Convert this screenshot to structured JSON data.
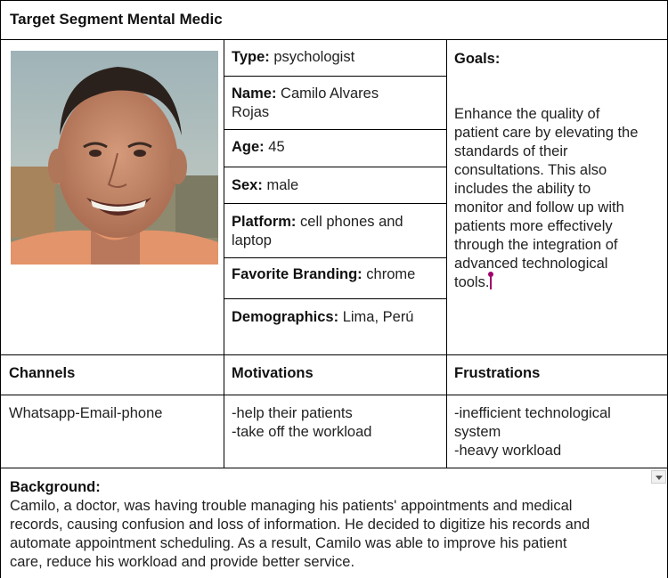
{
  "title": "Target Segment Mental Medic",
  "profile": {
    "type_label": "Type:",
    "type_value": "psychologist",
    "name_label": "Name:",
    "name_value_1": "Camilo Alvares",
    "name_value_2": "Rojas",
    "age_label": "Age:",
    "age_value": "45",
    "sex_label": "Sex:",
    "sex_value": "male",
    "platform_label": "Platform:",
    "platform_value_1": "cell phones and",
    "platform_value_2": "laptop",
    "branding_label": "Favorite Branding:",
    "branding_value": "chrome",
    "demographics_label": "Demographics:",
    "demographics_value": "Lima, Perú"
  },
  "goals": {
    "label": "Goals:",
    "lines": [
      "Enhance the quality of",
      "patient care by elevating the",
      "standards of their",
      "consultations. This also",
      "includes the ability to",
      "monitor and follow up with",
      "patients more effectively",
      "through the integration of",
      "advanced technological",
      "tools."
    ]
  },
  "channels": {
    "label": "Channels",
    "value": "Whatsapp-Email-phone"
  },
  "motivations": {
    "label": "Motivations",
    "items": [
      "-help their patients",
      "-take off the workload"
    ]
  },
  "frustrations": {
    "label": "Frustrations",
    "items": [
      "-inefficient technological",
      "system",
      "-heavy workload"
    ]
  },
  "background": {
    "label": "Background:",
    "lines": [
      "Camilo, a doctor, was having trouble managing his patients' appointments and medical",
      "records, causing confusion and loss of information. He decided to digitize his records and",
      "automate appointment scheduling. As a result, Camilo was able to improve his patient",
      "care, reduce his workload and provide better service."
    ]
  },
  "colors": {
    "border": "#000000",
    "text": "#222222",
    "cursor": "#a0006b"
  },
  "icons": {
    "dropdown": "chevron-down-icon"
  }
}
